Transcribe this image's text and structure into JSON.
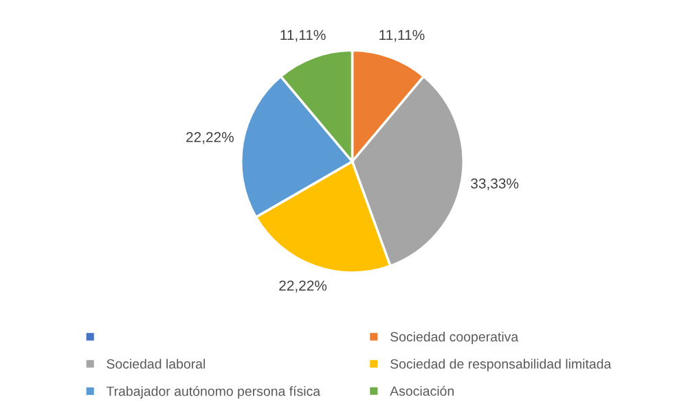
{
  "chart_data": {
    "type": "pie",
    "categories": [
      null,
      "Sociedad cooperativa",
      "Sociedad laboral",
      "Sociedad de responsabilidad limitada",
      "Trabajador autónomo persona física",
      "Asociación"
    ],
    "values": [
      0,
      11.11,
      33.33,
      22.22,
      22.22,
      11.11
    ],
    "colors": [
      "#4472c4",
      "#ed7d31",
      "#a5a5a5",
      "#ffc000",
      "#5b9bd5",
      "#70ad47"
    ],
    "value_labels": [
      null,
      "11,11%",
      "33,33%",
      "22,22%",
      "22,22%",
      "11,11%"
    ],
    "legend": "bottom"
  }
}
